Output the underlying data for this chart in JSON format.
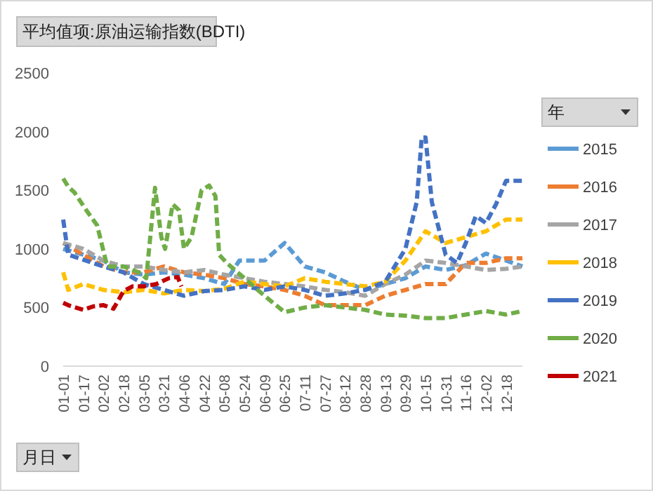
{
  "chart_data": {
    "type": "line",
    "title": "平均值项:原油运输指数(BDTI)",
    "xlabel": "月日",
    "legend_title": "年",
    "legend": "right",
    "grid": false,
    "line_style": "dashed",
    "xlim": [
      "--01-01",
      "--12-31"
    ],
    "xticks": [
      {
        "value": "--01-01",
        "label": "01-01"
      },
      {
        "value": "--01-17",
        "label": "01-17"
      },
      {
        "value": "--02-02",
        "label": "02-02"
      },
      {
        "value": "--02-18",
        "label": "02-18"
      },
      {
        "value": "--03-05",
        "label": "03-05"
      },
      {
        "value": "--03-21",
        "label": "03-21"
      },
      {
        "value": "--04-06",
        "label": "04-06"
      },
      {
        "value": "--04-22",
        "label": "04-22"
      },
      {
        "value": "--05-08",
        "label": "05-08"
      },
      {
        "value": "--05-24",
        "label": "05-24"
      },
      {
        "value": "--06-09",
        "label": "06-09"
      },
      {
        "value": "--06-25",
        "label": "06-25"
      },
      {
        "value": "--07-11",
        "label": "07-11"
      },
      {
        "value": "--07-27",
        "label": "07-27"
      },
      {
        "value": "--08-12",
        "label": "08-12"
      },
      {
        "value": "--08-28",
        "label": "08-28"
      },
      {
        "value": "--09-13",
        "label": "09-13"
      },
      {
        "value": "--09-29",
        "label": "09-29"
      },
      {
        "value": "--10-15",
        "label": "10-15"
      },
      {
        "value": "--10-31",
        "label": "10-31"
      },
      {
        "value": "--11-16",
        "label": "11-16"
      },
      {
        "value": "--12-02",
        "label": "12-02"
      },
      {
        "value": "--12-18",
        "label": "12-18"
      }
    ],
    "ylim": [
      0,
      2500
    ],
    "yticks": [
      0,
      500,
      1000,
      1500,
      2000,
      2500
    ],
    "series": [
      {
        "name": "2015",
        "color": "#5b9bd5",
        "x": [
          "--01-01",
          "--01-17",
          "--02-02",
          "--02-18",
          "--03-05",
          "--03-21",
          "--04-06",
          "--04-22",
          "--05-08",
          "--05-20",
          "--06-09",
          "--06-25",
          "--07-11",
          "--07-27",
          "--08-12",
          "--08-28",
          "--09-13",
          "--09-29",
          "--10-15",
          "--10-31",
          "--11-16",
          "--12-02",
          "--12-18",
          "--12-31"
        ],
        "values": [
          1000,
          950,
          900,
          800,
          780,
          800,
          780,
          750,
          700,
          900,
          900,
          1050,
          850,
          800,
          720,
          650,
          700,
          750,
          850,
          820,
          860,
          960,
          900,
          850
        ]
      },
      {
        "name": "2016",
        "color": "#ed7d31",
        "x": [
          "--01-01",
          "--01-17",
          "--02-02",
          "--02-18",
          "--03-05",
          "--03-21",
          "--04-06",
          "--04-22",
          "--05-08",
          "--05-24",
          "--06-09",
          "--06-25",
          "--07-11",
          "--07-27",
          "--08-12",
          "--08-28",
          "--09-13",
          "--09-29",
          "--10-15",
          "--10-31",
          "--11-16",
          "--12-02",
          "--12-18",
          "--12-31"
        ],
        "values": [
          1050,
          950,
          850,
          800,
          800,
          850,
          800,
          780,
          750,
          700,
          680,
          650,
          600,
          520,
          520,
          520,
          600,
          650,
          700,
          700,
          880,
          880,
          920,
          920
        ]
      },
      {
        "name": "2017",
        "color": "#a5a5a5",
        "x": [
          "--01-01",
          "--01-17",
          "--02-02",
          "--02-18",
          "--03-05",
          "--03-21",
          "--04-06",
          "--04-22",
          "--05-08",
          "--05-24",
          "--06-09",
          "--06-25",
          "--07-11",
          "--07-27",
          "--08-12",
          "--08-28",
          "--09-13",
          "--09-29",
          "--10-15",
          "--10-31",
          "--11-16",
          "--12-02",
          "--12-18",
          "--12-31"
        ],
        "values": [
          1050,
          1000,
          900,
          850,
          850,
          820,
          800,
          820,
          780,
          750,
          720,
          700,
          680,
          650,
          630,
          600,
          700,
          780,
          900,
          880,
          850,
          820,
          830,
          850
        ]
      },
      {
        "name": "2018",
        "color": "#ffc000",
        "x": [
          "--01-01",
          "--01-05",
          "--01-17",
          "--02-02",
          "--02-18",
          "--03-05",
          "--03-21",
          "--04-06",
          "--04-22",
          "--05-08",
          "--05-24",
          "--06-09",
          "--06-25",
          "--07-11",
          "--07-27",
          "--08-12",
          "--08-28",
          "--09-13",
          "--09-29",
          "--10-15",
          "--10-31",
          "--11-16",
          "--12-02",
          "--12-18",
          "--12-31"
        ],
        "values": [
          800,
          650,
          700,
          650,
          630,
          650,
          620,
          650,
          640,
          660,
          720,
          700,
          680,
          750,
          720,
          700,
          680,
          720,
          900,
          1150,
          1050,
          1100,
          1150,
          1250,
          1250
        ]
      },
      {
        "name": "2019",
        "color": "#4472c4",
        "x": [
          "--01-01",
          "--01-05",
          "--02-02",
          "--02-18",
          "--03-05",
          "--03-21",
          "--04-06",
          "--04-22",
          "--05-08",
          "--05-24",
          "--06-09",
          "--06-25",
          "--07-11",
          "--07-27",
          "--08-12",
          "--08-28",
          "--09-13",
          "--09-29",
          "--10-08",
          "--10-12",
          "--10-15",
          "--10-20",
          "--10-31",
          "--11-09",
          "--11-16",
          "--11-24",
          "--12-02",
          "--12-10",
          "--12-18",
          "--12-31"
        ],
        "values": [
          1250,
          950,
          850,
          800,
          700,
          650,
          600,
          640,
          650,
          680,
          650,
          680,
          650,
          600,
          620,
          650,
          720,
          1000,
          1400,
          1950,
          1950,
          1400,
          950,
          880,
          1050,
          1280,
          1220,
          1380,
          1580,
          1580
        ]
      },
      {
        "name": "2020",
        "color": "#70ad47",
        "x": [
          "--01-01",
          "--01-05",
          "--01-10",
          "--01-20",
          "--01-28",
          "--02-05",
          "--02-18",
          "--03-01",
          "--03-07",
          "--03-14",
          "--03-19",
          "--03-22",
          "--03-28",
          "--04-02",
          "--04-06",
          "--04-12",
          "--04-20",
          "--04-26",
          "--05-01",
          "--05-04",
          "--05-10",
          "--05-24",
          "--06-09",
          "--06-25",
          "--07-11",
          "--07-27",
          "--08-12",
          "--08-28",
          "--09-13",
          "--09-29",
          "--10-15",
          "--10-31",
          "--11-16",
          "--12-02",
          "--12-18",
          "--12-31"
        ],
        "values": [
          1600,
          1530,
          1480,
          1320,
          1200,
          850,
          850,
          800,
          750,
          1520,
          1100,
          1000,
          1380,
          1330,
          1000,
          1100,
          1500,
          1540,
          1450,
          950,
          880,
          750,
          600,
          460,
          500,
          520,
          500,
          480,
          440,
          430,
          410,
          410,
          440,
          470,
          440,
          470
        ]
      },
      {
        "name": "2021",
        "color": "#c00000",
        "x": [
          "--01-01",
          "--01-05",
          "--01-17",
          "--01-25",
          "--02-02",
          "--02-10",
          "--02-18",
          "--02-25",
          "--03-05",
          "--03-15",
          "--03-25",
          "--04-01",
          "--04-04"
        ],
        "values": [
          540,
          520,
          480,
          510,
          520,
          490,
          640,
          680,
          680,
          700,
          750,
          760,
          680
        ]
      }
    ]
  }
}
